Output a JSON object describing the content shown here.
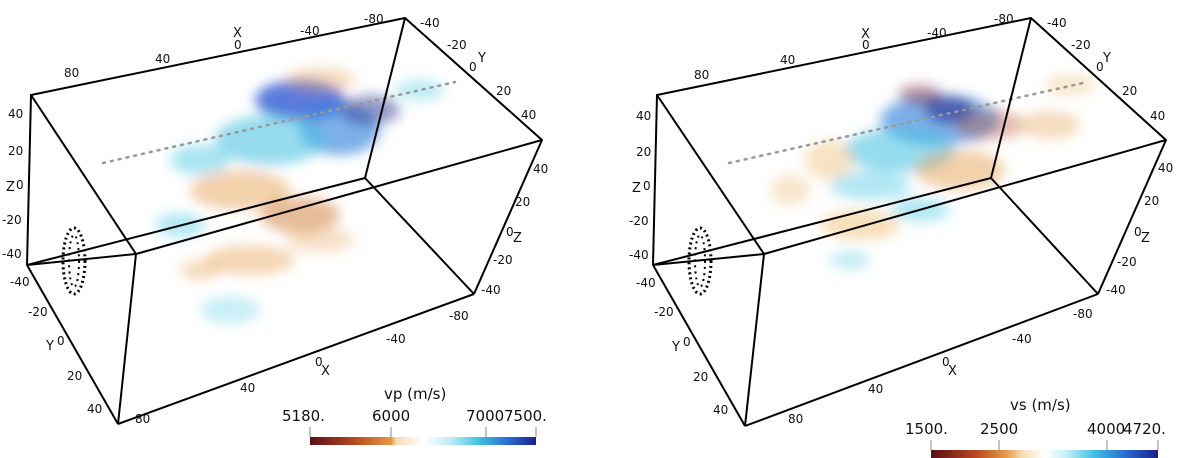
{
  "panels": [
    {
      "id": "left",
      "colorbar": {
        "title": "vp (m/s)",
        "ticks": [
          "5180.",
          "6000",
          "7000",
          "7500."
        ],
        "values": [
          5180,
          6000,
          7000,
          7500
        ],
        "colors": {
          "low": "#5a0f16",
          "mid_low": "#e08a2a",
          "mid": "#f7e3c2",
          "high": "#3fc6e0",
          "top": "#1a1f8a"
        }
      },
      "axes": {
        "x_letter": "X",
        "y_letter": "Y",
        "z_letter": "Z",
        "top_x_ticks": [
          "80",
          "40",
          "0",
          "-40",
          "-80"
        ],
        "top_y_ticks": [
          "-40",
          "-20",
          "0",
          "20",
          "40"
        ],
        "left_z_ticks": [
          "40",
          "20",
          "0",
          "-20",
          "-40"
        ],
        "left_y_ticks": [
          "-40",
          "-20",
          "0",
          "20",
          "40"
        ],
        "right_z_ticks": [
          "40",
          "20",
          "0",
          "-20",
          "-40"
        ],
        "bottom_x_ticks": [
          "80",
          "40",
          "0",
          "-40",
          "-80"
        ]
      }
    },
    {
      "id": "right",
      "colorbar": {
        "title": "vs (m/s)",
        "ticks": [
          "1500.",
          "2500",
          "4000",
          "4720."
        ],
        "values": [
          1500,
          2500,
          4000,
          4720
        ],
        "colors": {
          "low": "#5a0f16",
          "mid_low": "#e08a2a",
          "mid": "#f7e3c2",
          "high": "#3fc6e0",
          "top": "#1a1f8a"
        }
      },
      "axes": {
        "x_letter": "X",
        "y_letter": "Y",
        "z_letter": "Z",
        "top_x_ticks": [
          "80",
          "40",
          "0",
          "-40",
          "-80"
        ],
        "top_y_ticks": [
          "-40",
          "-20",
          "0",
          "20",
          "40"
        ],
        "left_z_ticks": [
          "40",
          "20",
          "0",
          "-20",
          "-40"
        ],
        "left_y_ticks": [
          "-40",
          "-20",
          "0",
          "20",
          "40"
        ],
        "right_z_ticks": [
          "40",
          "20",
          "0",
          "-20",
          "-40"
        ],
        "bottom_x_ticks": [
          "80",
          "40",
          "0",
          "-40",
          "-80"
        ]
      }
    }
  ]
}
